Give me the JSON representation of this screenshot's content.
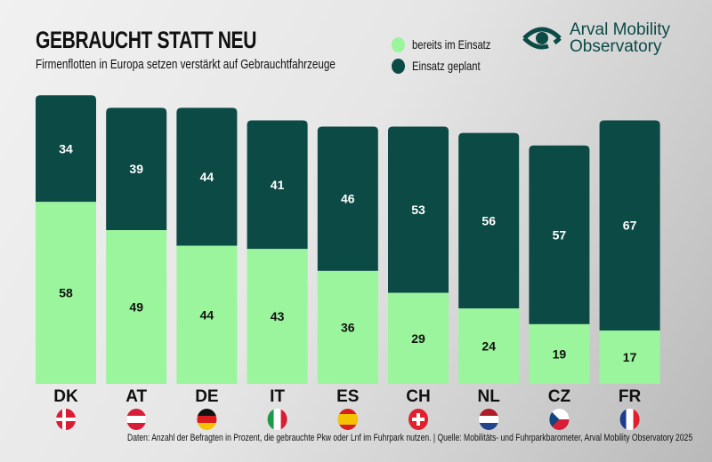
{
  "title": "GEBRAUCHT STATT NEU",
  "subtitle": "Firmenflotten in Europa setzen verstärkt auf Gebrauchtfahrzeuge",
  "logo": {
    "line1": "Arval Mobility",
    "line2": "Observatory"
  },
  "footer": "Daten: Anzahl der Befragten in Prozent, die gebrauchte Pkw oder Lnf im Fuhrpark nutzen. | Quelle: Mobilitäts- und Fuhrparkbarometer, Arval Mobility Observatory 2025",
  "colors": {
    "bereits": "#9af59c",
    "geplant": "#0b4a45"
  },
  "chart_data": {
    "type": "bar",
    "stacked": true,
    "categories": [
      "DK",
      "AT",
      "DE",
      "IT",
      "ES",
      "CH",
      "NL",
      "CZ",
      "FR"
    ],
    "series": [
      {
        "name": "bereits im Einsatz",
        "values": [
          58,
          49,
          44,
          43,
          36,
          29,
          24,
          19,
          17
        ]
      },
      {
        "name": "Einsatz geplant",
        "values": [
          34,
          39,
          44,
          41,
          46,
          53,
          56,
          57,
          67
        ]
      }
    ],
    "legend": "top-right",
    "grid": false,
    "flags": [
      "denmark-flag",
      "austria-flag",
      "germany-flag",
      "italy-flag",
      "spain-flag",
      "switzerland-flag",
      "netherlands-flag",
      "czech-flag",
      "france-flag"
    ]
  }
}
